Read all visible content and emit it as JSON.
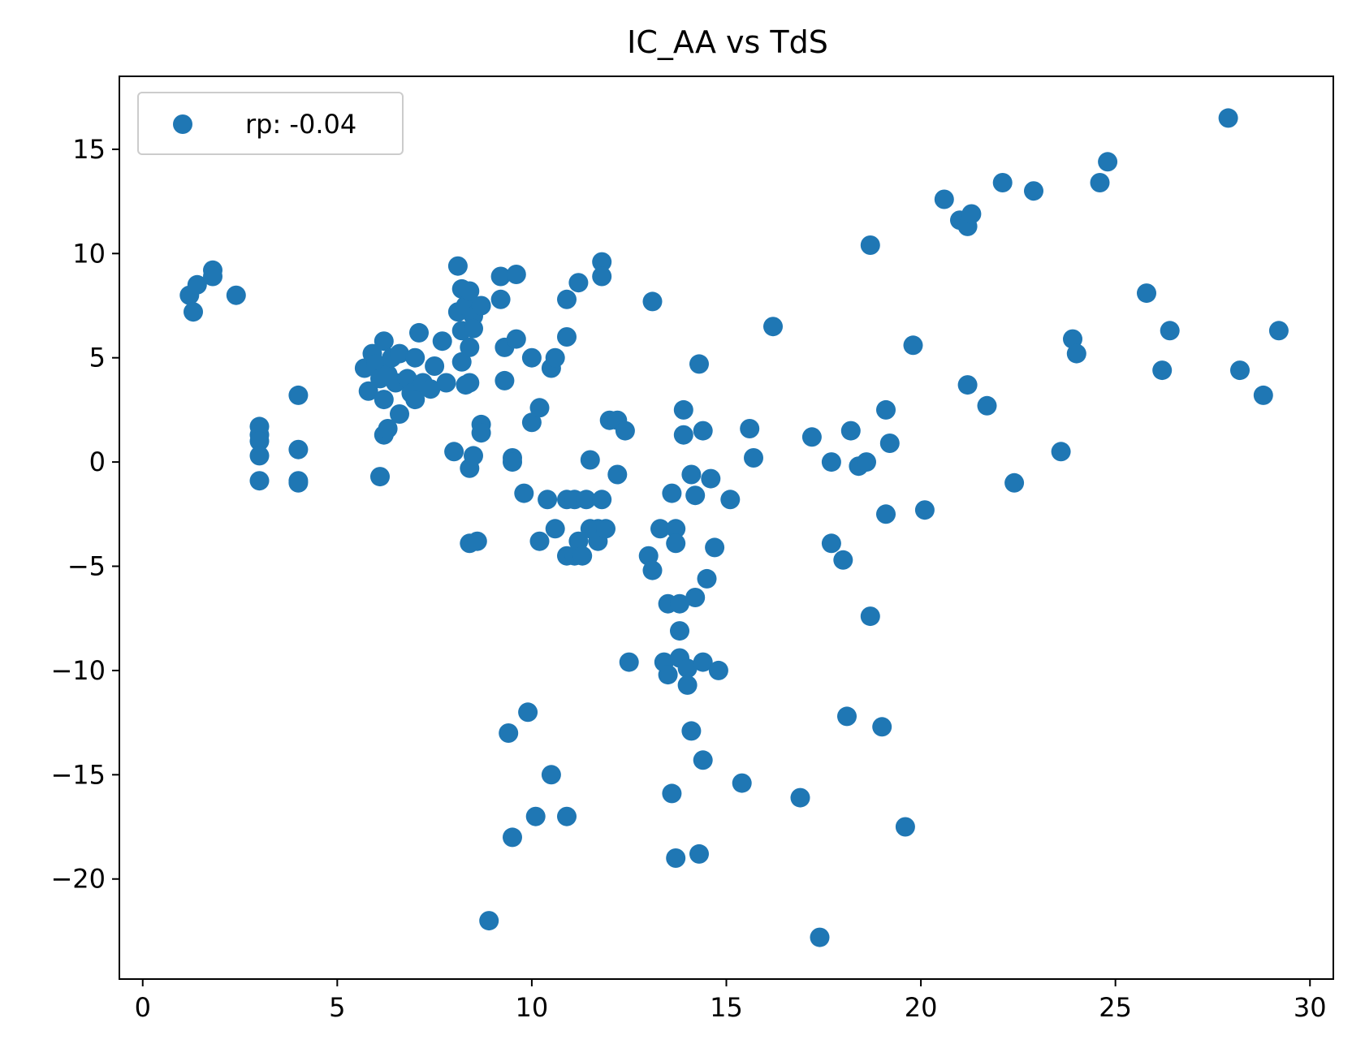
{
  "chart_data": {
    "type": "scatter",
    "title": "IC_AA vs TdS",
    "xlabel": "",
    "ylabel": "",
    "xlim": [
      -0.6,
      30.6
    ],
    "ylim": [
      -24.8,
      18.5
    ],
    "xticks": [
      0,
      5,
      10,
      15,
      20,
      25,
      30
    ],
    "yticks": [
      15,
      10,
      5,
      0,
      -5,
      -10,
      -15,
      -20
    ],
    "grid": false,
    "legend_position": "upper-left",
    "color": "#1f77b4",
    "series": [
      {
        "name": "rp: -0.04",
        "points": [
          [
            1.2,
            8.0
          ],
          [
            1.3,
            7.2
          ],
          [
            1.4,
            8.5
          ],
          [
            1.8,
            9.2
          ],
          [
            1.8,
            8.9
          ],
          [
            2.4,
            8.0
          ],
          [
            3.0,
            1.7
          ],
          [
            3.0,
            1.3
          ],
          [
            3.0,
            1.0
          ],
          [
            3.0,
            0.3
          ],
          [
            3.0,
            -0.9
          ],
          [
            4.0,
            3.2
          ],
          [
            4.0,
            0.6
          ],
          [
            4.0,
            -0.9
          ],
          [
            4.0,
            -1.0
          ],
          [
            5.7,
            4.5
          ],
          [
            5.8,
            3.4
          ],
          [
            5.9,
            5.2
          ],
          [
            6.0,
            4.7
          ],
          [
            6.1,
            4.0
          ],
          [
            6.1,
            -0.7
          ],
          [
            6.2,
            5.8
          ],
          [
            6.2,
            3.0
          ],
          [
            6.2,
            1.3
          ],
          [
            6.3,
            4.2
          ],
          [
            6.3,
            1.6
          ],
          [
            6.4,
            5.0
          ],
          [
            6.5,
            3.8
          ],
          [
            6.6,
            5.2
          ],
          [
            6.6,
            2.3
          ],
          [
            6.8,
            4.0
          ],
          [
            6.9,
            3.3
          ],
          [
            7.0,
            5.0
          ],
          [
            7.0,
            3.0
          ],
          [
            7.1,
            6.2
          ],
          [
            7.2,
            3.8
          ],
          [
            7.4,
            3.5
          ],
          [
            7.5,
            4.6
          ],
          [
            7.7,
            5.8
          ],
          [
            7.8,
            3.8
          ],
          [
            8.0,
            0.5
          ],
          [
            8.1,
            9.4
          ],
          [
            8.1,
            7.2
          ],
          [
            8.2,
            8.3
          ],
          [
            8.2,
            4.8
          ],
          [
            8.2,
            6.3
          ],
          [
            8.3,
            3.7
          ],
          [
            8.3,
            7.5
          ],
          [
            8.4,
            8.2
          ],
          [
            8.4,
            5.5
          ],
          [
            8.4,
            3.8
          ],
          [
            8.4,
            -0.3
          ],
          [
            8.4,
            -3.9
          ],
          [
            8.5,
            7.0
          ],
          [
            8.5,
            6.4
          ],
          [
            8.5,
            0.3
          ],
          [
            8.6,
            -3.8
          ],
          [
            8.7,
            7.5
          ],
          [
            8.7,
            1.8
          ],
          [
            8.7,
            1.4
          ],
          [
            8.9,
            -22.0
          ],
          [
            9.2,
            8.9
          ],
          [
            9.2,
            7.8
          ],
          [
            9.3,
            5.5
          ],
          [
            9.3,
            3.9
          ],
          [
            9.4,
            -13.0
          ],
          [
            9.5,
            0.2
          ],
          [
            9.5,
            0.0
          ],
          [
            9.5,
            -18.0
          ],
          [
            9.6,
            9.0
          ],
          [
            9.6,
            5.9
          ],
          [
            9.8,
            -1.5
          ],
          [
            9.9,
            -12.0
          ],
          [
            10.0,
            5.0
          ],
          [
            10.0,
            1.9
          ],
          [
            10.1,
            -17.0
          ],
          [
            10.2,
            2.6
          ],
          [
            10.2,
            -3.8
          ],
          [
            10.4,
            -1.8
          ],
          [
            10.5,
            4.5
          ],
          [
            10.5,
            -15.0
          ],
          [
            10.6,
            5.0
          ],
          [
            10.6,
            -3.2
          ],
          [
            10.9,
            7.8
          ],
          [
            10.9,
            6.0
          ],
          [
            10.9,
            -1.8
          ],
          [
            10.9,
            -4.5
          ],
          [
            10.9,
            -17.0
          ],
          [
            11.1,
            -1.8
          ],
          [
            11.1,
            -4.5
          ],
          [
            11.2,
            8.6
          ],
          [
            11.2,
            -3.8
          ],
          [
            11.3,
            -4.5
          ],
          [
            11.4,
            -1.8
          ],
          [
            11.5,
            0.1
          ],
          [
            11.5,
            -3.2
          ],
          [
            11.7,
            -3.2
          ],
          [
            11.7,
            -3.8
          ],
          [
            11.8,
            9.6
          ],
          [
            11.8,
            8.9
          ],
          [
            11.8,
            -1.8
          ],
          [
            11.9,
            -3.2
          ],
          [
            12.0,
            2.0
          ],
          [
            12.2,
            2.0
          ],
          [
            12.2,
            -0.6
          ],
          [
            12.4,
            1.5
          ],
          [
            12.5,
            -9.6
          ],
          [
            13.0,
            -4.5
          ],
          [
            13.1,
            7.7
          ],
          [
            13.1,
            -5.2
          ],
          [
            13.3,
            -3.2
          ],
          [
            13.4,
            -9.6
          ],
          [
            13.5,
            -10.2
          ],
          [
            13.5,
            -6.8
          ],
          [
            13.6,
            -1.5
          ],
          [
            13.6,
            -15.9
          ],
          [
            13.7,
            -3.2
          ],
          [
            13.7,
            -3.9
          ],
          [
            13.7,
            -19.0
          ],
          [
            13.8,
            -6.8
          ],
          [
            13.8,
            -8.1
          ],
          [
            13.8,
            -9.4
          ],
          [
            13.9,
            2.5
          ],
          [
            13.9,
            1.3
          ],
          [
            14.0,
            -9.9
          ],
          [
            14.0,
            -10.7
          ],
          [
            14.1,
            -0.6
          ],
          [
            14.1,
            -12.9
          ],
          [
            14.2,
            -1.6
          ],
          [
            14.2,
            -6.5
          ],
          [
            14.3,
            4.7
          ],
          [
            14.3,
            -18.8
          ],
          [
            14.4,
            1.5
          ],
          [
            14.4,
            -9.6
          ],
          [
            14.4,
            -14.3
          ],
          [
            14.5,
            -5.6
          ],
          [
            14.6,
            -0.8
          ],
          [
            14.7,
            -4.1
          ],
          [
            14.8,
            -10.0
          ],
          [
            15.1,
            -1.8
          ],
          [
            15.4,
            -15.4
          ],
          [
            15.6,
            1.6
          ],
          [
            15.7,
            0.2
          ],
          [
            16.2,
            6.5
          ],
          [
            16.9,
            -16.1
          ],
          [
            17.2,
            1.2
          ],
          [
            17.4,
            -22.8
          ],
          [
            17.7,
            -3.9
          ],
          [
            17.7,
            0.0
          ],
          [
            18.0,
            -4.7
          ],
          [
            18.1,
            -12.2
          ],
          [
            18.2,
            1.5
          ],
          [
            18.4,
            -0.2
          ],
          [
            18.6,
            0.0
          ],
          [
            18.7,
            10.4
          ],
          [
            18.7,
            -7.4
          ],
          [
            19.0,
            -12.7
          ],
          [
            19.1,
            2.5
          ],
          [
            19.1,
            -2.5
          ],
          [
            19.2,
            0.9
          ],
          [
            19.6,
            -17.5
          ],
          [
            19.8,
            5.6
          ],
          [
            20.1,
            -2.3
          ],
          [
            20.6,
            12.6
          ],
          [
            21.0,
            11.6
          ],
          [
            21.2,
            3.7
          ],
          [
            21.2,
            11.3
          ],
          [
            21.3,
            11.9
          ],
          [
            21.7,
            2.7
          ],
          [
            22.1,
            13.4
          ],
          [
            22.4,
            -1.0
          ],
          [
            22.9,
            13.0
          ],
          [
            23.6,
            0.5
          ],
          [
            23.9,
            5.9
          ],
          [
            24.0,
            5.2
          ],
          [
            24.6,
            13.4
          ],
          [
            24.8,
            14.4
          ],
          [
            25.8,
            8.1
          ],
          [
            26.2,
            4.4
          ],
          [
            26.4,
            6.3
          ],
          [
            27.9,
            16.5
          ],
          [
            28.2,
            4.4
          ],
          [
            28.8,
            3.2
          ],
          [
            29.2,
            6.3
          ]
        ]
      }
    ]
  }
}
